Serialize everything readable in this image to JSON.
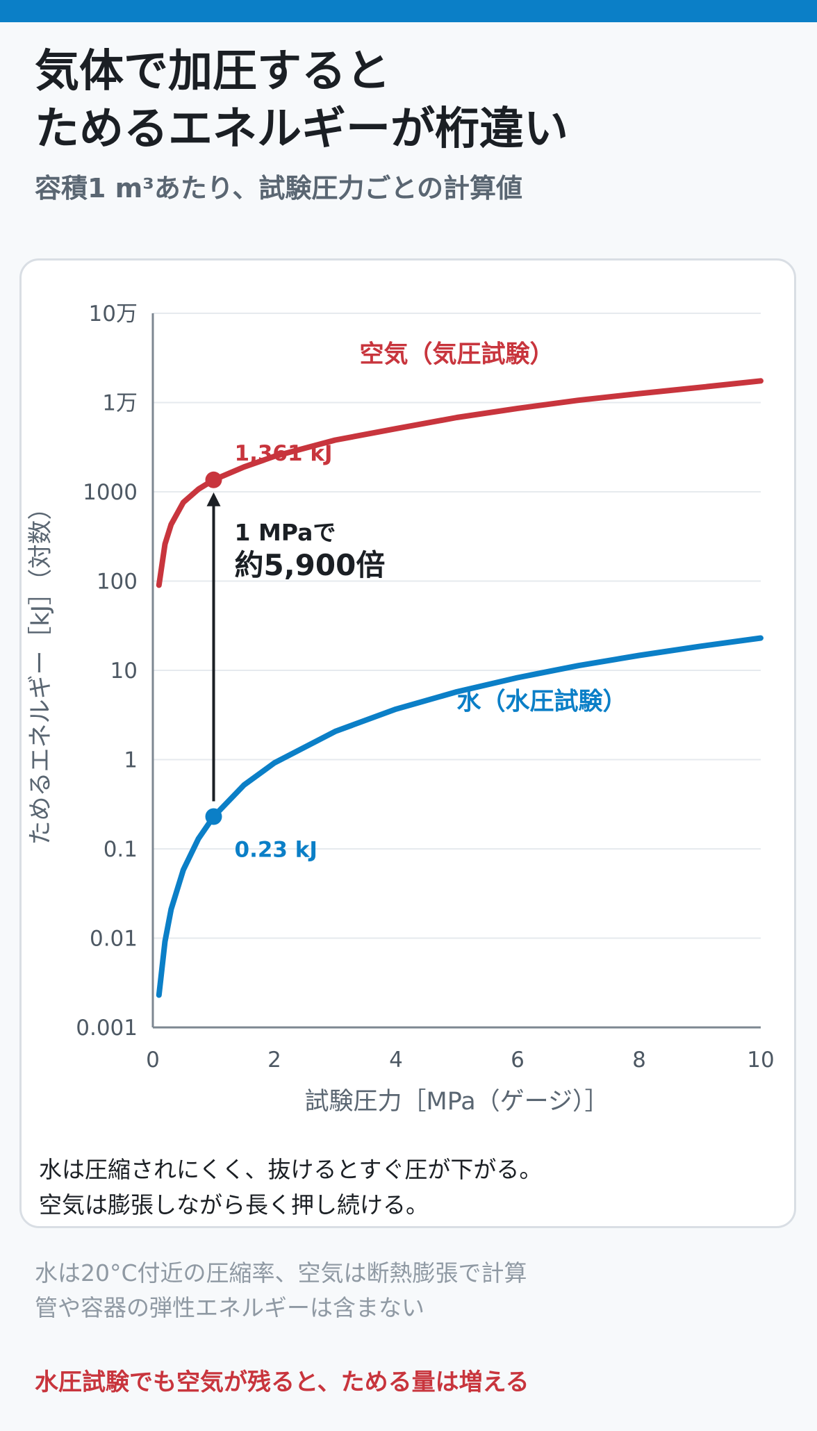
{
  "header": {
    "title_lines": [
      "気体で加圧すると",
      "ためるエネルギーが桁違い"
    ],
    "subtitle": "容積1 m³あたり、試験圧力ごとの計算値"
  },
  "chart_data": {
    "type": "line",
    "xlabel": "試験圧力［MPa（ゲージ）］",
    "ylabel": "ためるエネルギー［kJ］（対数）",
    "xlim": [
      0,
      10
    ],
    "ylim": [
      0.001,
      100000
    ],
    "yscale": "log",
    "x_ticks": [
      0,
      2,
      4,
      6,
      8,
      10
    ],
    "y_ticks": [
      0.001,
      0.01,
      0.1,
      1,
      10,
      100,
      1000,
      10000,
      100000
    ],
    "y_tick_labels": [
      "0.001",
      "0.01",
      "0.1",
      "1",
      "10",
      "100",
      "1000",
      "1万",
      "10万"
    ],
    "grid": "horizontal",
    "series": [
      {
        "name": "空気（気圧試験）",
        "color": "#c8353d",
        "x": [
          0.1,
          0.2,
          0.3,
          0.5,
          0.75,
          1,
          1.5,
          2,
          3,
          4,
          5,
          6,
          7,
          8,
          9,
          10
        ],
        "y": [
          90,
          260,
          430,
          760,
          1070,
          1361,
          1900,
          2500,
          3800,
          5100,
          6800,
          8600,
          10600,
          12600,
          14800,
          17500
        ]
      },
      {
        "name": "水（水圧試験）",
        "color": "#0b7fc7",
        "x": [
          0.1,
          0.2,
          0.3,
          0.5,
          0.75,
          1,
          1.5,
          2,
          3,
          4,
          5,
          6,
          7,
          8,
          9,
          10
        ],
        "y": [
          0.0023,
          0.0092,
          0.021,
          0.058,
          0.13,
          0.23,
          0.52,
          0.92,
          2.07,
          3.68,
          5.75,
          8.28,
          11.3,
          14.7,
          18.6,
          23
        ]
      }
    ],
    "points": [
      {
        "x": 1,
        "y": 1361,
        "label": "1,361 kJ",
        "color": "#c8353d"
      },
      {
        "x": 1,
        "y": 0.23,
        "label": "0.23 kJ",
        "color": "#0b7fc7"
      }
    ],
    "annotation": {
      "line1": "1 MPaで",
      "line2": "約5,900倍",
      "x": 1
    }
  },
  "card_note": [
    "水は圧縮されにくく、抜けるとすぐ圧が下がる。",
    "空気は膨張しながら長く押し続ける。"
  ],
  "footnote": [
    "水は20°C付近の圧縮率、空気は断熱膨張で計算",
    "管や容器の弾性エネルギーは含まない"
  ],
  "emphasis": "水圧試験でも空気が残ると、ためる量は増える"
}
